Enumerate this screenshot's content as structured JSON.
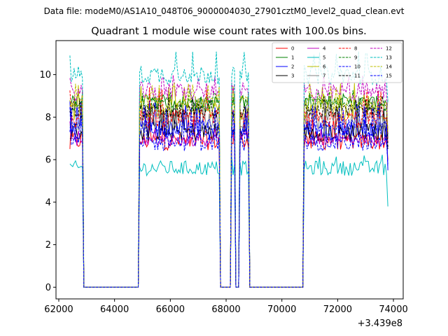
{
  "chart_data": {
    "type": "line",
    "suptitle": "Data file: modeM0/AS1A10_048T06_9000004030_27901cztM0_level2_quad_clean.evt",
    "title": "Quadrant 1 module wise count rates with 100.0s bins.",
    "xlabel": "",
    "ylabel": "",
    "x_offset_label": "+3.439e8",
    "xlim": [
      61900,
      74350
    ],
    "ylim": [
      -0.55,
      11.6
    ],
    "xticks": [
      62000,
      64000,
      66000,
      68000,
      70000,
      72000,
      74000
    ],
    "yticks": [
      0,
      2,
      4,
      6,
      8,
      10
    ],
    "legend_position": "top-right",
    "gaps": [
      [
        62900,
        64850
      ],
      [
        67800,
        68150
      ],
      [
        68350,
        68450
      ],
      [
        68850,
        70750
      ]
    ],
    "segments": [
      {
        "start": 62400,
        "end": 62800
      },
      {
        "start": 64950,
        "end": 67650
      },
      {
        "start": 68250,
        "end": 68300
      },
      {
        "start": 68500,
        "end": 68700
      },
      {
        "start": 70850,
        "end": 73700
      }
    ],
    "x_end": 73800,
    "series": [
      {
        "name": "0",
        "color": "#ff0000",
        "dash": false,
        "level": 6.9,
        "noise": 0.45,
        "start_val": 6.5,
        "end_val": 6.0,
        "max_level": 8.2
      },
      {
        "name": "1",
        "color": "#008000",
        "dash": false,
        "level": 8.7,
        "noise": 0.3,
        "start_val": 8.6,
        "end_val": 7.0,
        "max_level": 9.2
      },
      {
        "name": "2",
        "color": "#0000ff",
        "dash": false,
        "level": 7.4,
        "noise": 0.5,
        "start_val": 7.2,
        "end_val": 5.5,
        "max_level": 8.9
      },
      {
        "name": "3",
        "color": "#000000",
        "dash": false,
        "level": 7.3,
        "noise": 0.45,
        "start_val": 7.0,
        "end_val": 6.5,
        "max_level": 8.6
      },
      {
        "name": "4",
        "color": "#bf00bf",
        "dash": false,
        "level": 6.9,
        "noise": 0.25,
        "start_val": 7.8,
        "end_val": 7.3,
        "max_level": 7.5
      },
      {
        "name": "5",
        "color": "#00bfbf",
        "dash": false,
        "level": 5.6,
        "noise": 0.35,
        "start_val": 5.8,
        "end_val": 3.8,
        "max_level": 6.3
      },
      {
        "name": "6",
        "color": "#bfbf00",
        "dash": false,
        "level": 8.3,
        "noise": 0.45,
        "start_val": 8.5,
        "end_val": 7.5,
        "max_level": 9.6
      },
      {
        "name": "7",
        "color": "#808080",
        "dash": false,
        "level": 7.8,
        "noise": 0.45,
        "start_val": 7.6,
        "end_val": 6.8,
        "max_level": 9.0
      },
      {
        "name": "8",
        "color": "#ff0000",
        "dash": true,
        "level": 7.9,
        "noise": 0.45,
        "start_val": 7.7,
        "end_val": 6.8,
        "max_level": 9.4
      },
      {
        "name": "9",
        "color": "#008000",
        "dash": true,
        "level": 8.6,
        "noise": 0.35,
        "start_val": 8.4,
        "end_val": 7.2,
        "max_level": 9.3
      },
      {
        "name": "10",
        "color": "#0000ff",
        "dash": true,
        "level": 6.8,
        "noise": 0.4,
        "start_val": 6.9,
        "end_val": 5.8,
        "max_level": 8.5
      },
      {
        "name": "11",
        "color": "#000000",
        "dash": true,
        "level": 8.3,
        "noise": 0.35,
        "start_val": 8.3,
        "end_val": 6.6,
        "max_level": 9.0
      },
      {
        "name": "12",
        "color": "#bf00bf",
        "dash": true,
        "level": 9.2,
        "noise": 0.45,
        "start_val": 9.0,
        "end_val": 7.2,
        "max_level": 10.0
      },
      {
        "name": "13",
        "color": "#00bfbf",
        "dash": true,
        "level": 10.0,
        "noise": 0.45,
        "start_val": 10.9,
        "end_val": 8.7,
        "max_level": 11.1
      },
      {
        "name": "14",
        "color": "#bfbf00",
        "dash": true,
        "level": 8.7,
        "noise": 0.4,
        "start_val": 8.8,
        "end_val": 7.3,
        "max_level": 9.6
      },
      {
        "name": "15",
        "color": "#0000ff",
        "dash": true,
        "level": 7.5,
        "noise": 0.4,
        "start_val": 7.3,
        "end_val": 5.5,
        "max_level": 8.6
      }
    ]
  }
}
